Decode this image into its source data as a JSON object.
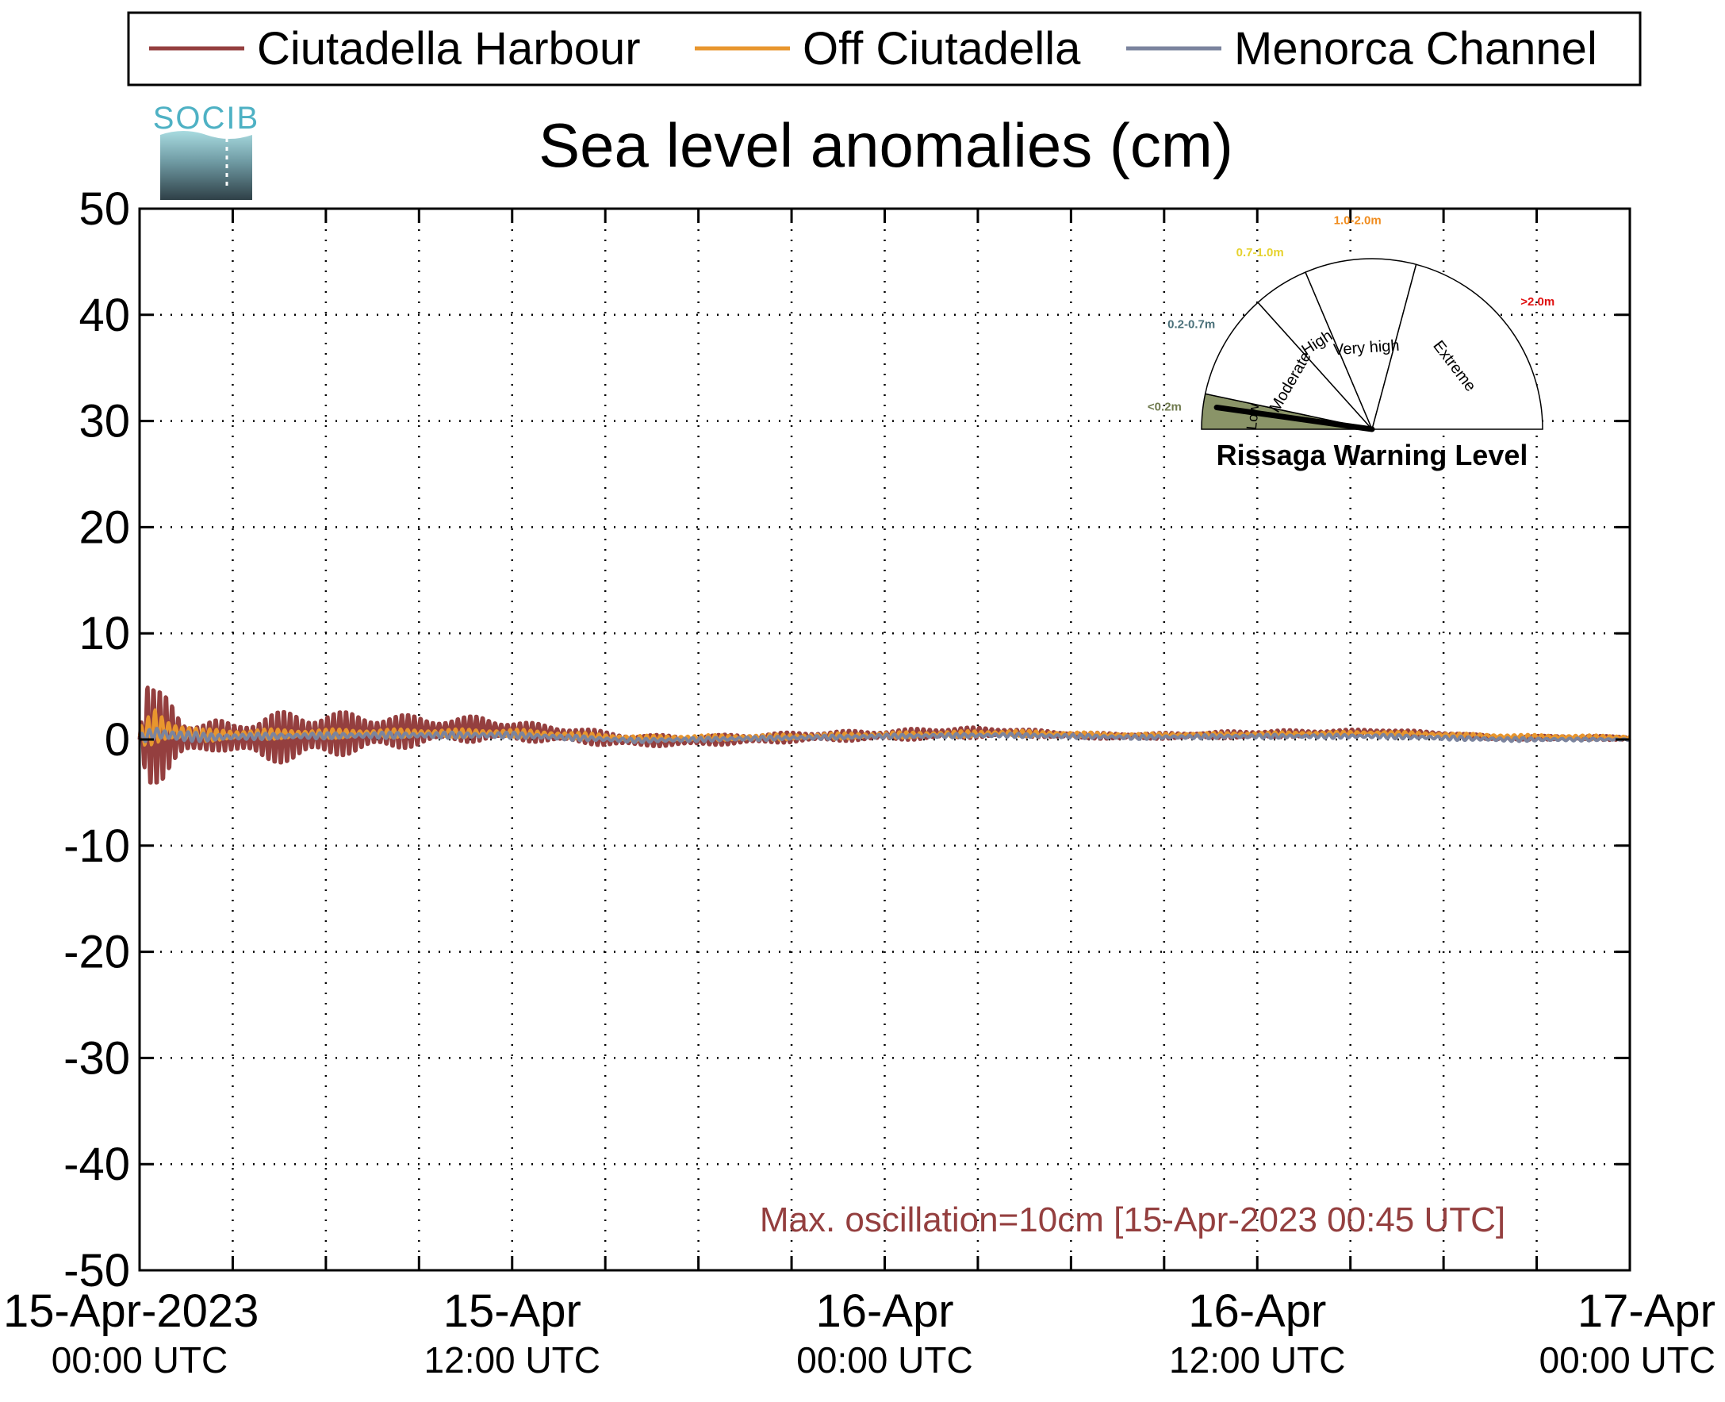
{
  "logo": {
    "text": "SOCIB"
  },
  "legend": {
    "placement": "top",
    "entries": [
      {
        "label": "Ciutadella Harbour",
        "color": "#943f3f"
      },
      {
        "label": "Off Ciutadella",
        "color": "#e8962e"
      },
      {
        "label": "Menorca Channel",
        "color": "#7b849e"
      }
    ]
  },
  "annotation": {
    "text": "Max. oscillation=10cm [15-Apr-2023 00:45 UTC]",
    "color": "#943f3f"
  },
  "gauge": {
    "title": "Rissaga Warning Level",
    "current_level": "Low",
    "sectors": [
      {
        "name": "Low",
        "range": "<0.2m",
        "range_color": "#6f7a4e",
        "fill": "#8a9468"
      },
      {
        "name": "Moderate",
        "range": "0.2-0.7m",
        "range_color": "#4a7079",
        "fill": "#ffffff"
      },
      {
        "name": "High",
        "range": "0.7-1.0m",
        "range_color": "#e6d22e",
        "fill": "#ffffff"
      },
      {
        "name": "Very high",
        "range": "1.0-2.0m",
        "range_color": "#f08c1e",
        "fill": "#ffffff"
      },
      {
        "name": "Extreme",
        "range": ">2.0m",
        "range_color": "#e01010",
        "fill": "#ffffff"
      }
    ]
  },
  "chart_data": {
    "type": "line",
    "title": "Sea level anomalies (cm)",
    "xlabel": "",
    "ylabel": "",
    "ylim": [
      -50,
      50
    ],
    "yticks": [
      -50,
      -40,
      -30,
      -20,
      -10,
      0,
      10,
      20,
      30,
      40,
      50
    ],
    "xlim_hours": [
      0,
      48
    ],
    "x_unit": "hours after 15-Apr-2023 00:00 UTC",
    "xgrid_step_hours": 3,
    "grid": true,
    "xtick_labels": [
      {
        "hours": 0,
        "line1": "15-Apr-2023",
        "line2": "00:00 UTC"
      },
      {
        "hours": 12,
        "line1": "15-Apr",
        "line2": "12:00 UTC"
      },
      {
        "hours": 24,
        "line1": "16-Apr",
        "line2": "00:00 UTC"
      },
      {
        "hours": 36,
        "line1": "16-Apr",
        "line2": "12:00 UTC"
      },
      {
        "hours": 48,
        "line1": "17-Apr",
        "line2": "00:00 UTC"
      }
    ],
    "series": [
      {
        "name": "Ciutadella Harbour",
        "color": "#943f3f",
        "envelope_hours": [
          0,
          0.25,
          0.5,
          0.75,
          1,
          1.5,
          2,
          2.5,
          3,
          4,
          5,
          6,
          7,
          8,
          9,
          10,
          11,
          12,
          13,
          14,
          15,
          16,
          18,
          20,
          22,
          24,
          26,
          28,
          30,
          32,
          34,
          36,
          38,
          40,
          42,
          44,
          46,
          48
        ],
        "center": [
          0,
          0.5,
          0.2,
          0.3,
          0.5,
          0.1,
          0.2,
          0.4,
          0.2,
          0.1,
          0.3,
          0.5,
          0.6,
          0.7,
          0.8,
          0.9,
          1.0,
          0.8,
          0.6,
          0.4,
          0.1,
          -0.1,
          -0.1,
          0.1,
          0.3,
          0.4,
          0.6,
          0.7,
          0.4,
          0.3,
          0.4,
          0.5,
          0.6,
          0.7,
          0.5,
          0.1,
          0.2,
          0.1
        ],
        "amplitude": [
          1,
          5,
          4.5,
          4.5,
          4,
          2,
          1.5,
          1.5,
          1.5,
          2.5,
          2.5,
          2.3,
          2.0,
          1.8,
          1.5,
          1.2,
          1.3,
          1.0,
          0.9,
          0.8,
          0.7,
          0.6,
          0.5,
          0.5,
          0.5,
          0.5,
          0.6,
          0.4,
          0.3,
          0.3,
          0.3,
          0.4,
          0.3,
          0.3,
          0.2,
          0.2,
          0.2,
          0.2
        ]
      },
      {
        "name": "Off Ciutadella",
        "color": "#e8962e",
        "envelope_hours": [
          0,
          0.5,
          1,
          2,
          4,
          8,
          12,
          16,
          20,
          24,
          28,
          32,
          36,
          40,
          44,
          48
        ],
        "center": [
          0.3,
          1.2,
          0.8,
          0.4,
          0.5,
          0.6,
          0.6,
          0.1,
          0.2,
          0.4,
          0.6,
          0.4,
          0.5,
          0.6,
          0.3,
          0.2
        ],
        "amplitude": [
          0.8,
          1.8,
          1.2,
          0.6,
          0.5,
          0.4,
          0.4,
          0.3,
          0.3,
          0.3,
          0.3,
          0.2,
          0.2,
          0.2,
          0.2,
          0.2
        ]
      },
      {
        "name": "Menorca Channel",
        "color": "#7b849e",
        "envelope_hours": [
          0,
          0.5,
          1,
          2,
          4,
          8,
          12,
          16,
          20,
          24,
          28,
          32,
          36,
          40,
          44,
          48
        ],
        "center": [
          0.1,
          0.6,
          0.4,
          0.2,
          0.3,
          0.4,
          0.4,
          -0.1,
          0.1,
          0.3,
          0.4,
          0.2,
          0.3,
          0.3,
          0.0,
          0.0
        ],
        "amplitude": [
          0.4,
          0.8,
          0.6,
          0.4,
          0.3,
          0.3,
          0.3,
          0.2,
          0.2,
          0.2,
          0.2,
          0.2,
          0.2,
          0.2,
          0.2,
          0.1
        ]
      }
    ]
  }
}
